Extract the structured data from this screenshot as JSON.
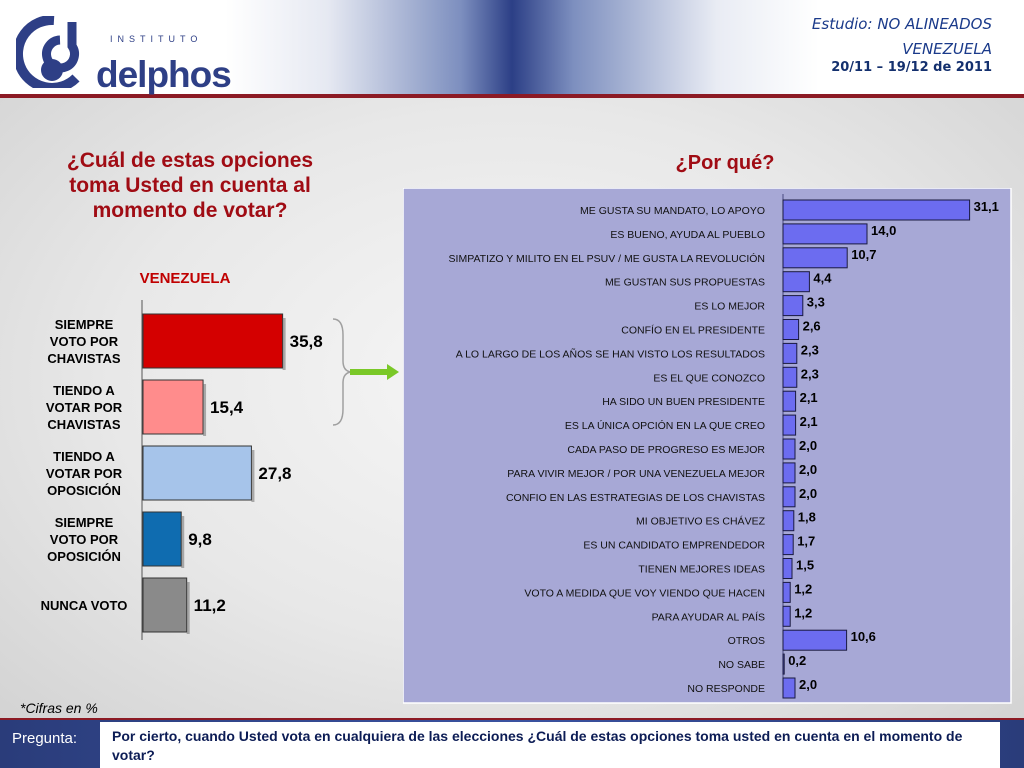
{
  "header": {
    "logo_small": "INSTITUTO",
    "logo_word": "delphos",
    "study_prefix": "Estudio:",
    "study_name": "NO ALINEADOS",
    "country": "VENEZUELA",
    "dates": "20/11 – 19/12 de 2011"
  },
  "left_question": "¿Cuál de estas opciones toma Usted en cuenta al momento de votar?",
  "right_question": "¿Por qué?",
  "note": "*Cifras en %",
  "footer": {
    "label": "Pregunta:",
    "question": "Por cierto, cuando Usted vota en cualquiera de las elecciones ¿Cuál de estas opciones toma usted en cuenta en el momento de votar?"
  },
  "chart_data": [
    {
      "type": "bar",
      "orientation": "horizontal",
      "title": "VENEZUELA",
      "categories": [
        "SIEMPRE VOTO POR CHAVISTAS",
        "TIENDO A VOTAR POR CHAVISTAS",
        "TIENDO A VOTAR POR OPOSICIÓN",
        "SIEMPRE VOTO POR OPOSICIÓN",
        "NUNCA VOTO"
      ],
      "values": [
        35.8,
        15.4,
        27.8,
        9.8,
        11.2
      ],
      "value_labels": [
        "35,8",
        "15,4",
        "27,8",
        "9,8",
        "11,2"
      ],
      "colors": [
        "#d40000",
        "#ff8c8c",
        "#a6c4ea",
        "#0f6cb0",
        "#8a8a8a"
      ]
    },
    {
      "type": "bar",
      "orientation": "horizontal",
      "title": "¿Por qué?",
      "categories": [
        "ME GUSTA SU MANDATO, LO APOYO",
        "ES BUENO, AYUDA AL PUEBLO",
        "SIMPATIZO Y MILITO EN EL PSUV / ME GUSTA LA REVOLUCIÓN",
        "ME GUSTAN SUS PROPUESTAS",
        "ES LO MEJOR",
        "CONFÍO EN EL PRESIDENTE",
        "A LO LARGO DE LOS AÑOS SE HAN VISTO LOS RESULTADOS",
        "ES EL QUE CONOZCO",
        "HA SIDO UN BUEN PRESIDENTE",
        "ES LA ÚNICA OPCIÓN EN LA QUE CREO",
        "CADA PASO DE PROGRESO ES MEJOR",
        "PARA VIVIR MEJOR / POR UNA VENEZUELA MEJOR",
        "CONFIO EN LAS ESTRATEGIAS DE LOS CHAVISTAS",
        "MI OBJETIVO ES CHÁVEZ",
        "ES UN CANDIDATO EMPRENDEDOR",
        "TIENEN MEJORES IDEAS",
        "VOTO A MEDIDA QUE VOY VIENDO QUE HACEN",
        "PARA AYUDAR AL PAÍS",
        "OTROS",
        "NO SABE",
        "NO RESPONDE"
      ],
      "values": [
        31.1,
        14.0,
        10.7,
        4.4,
        3.3,
        2.6,
        2.3,
        2.3,
        2.1,
        2.1,
        2.0,
        2.0,
        2.0,
        1.8,
        1.7,
        1.5,
        1.2,
        1.2,
        10.6,
        0.2,
        2.0
      ],
      "value_labels": [
        "31,1",
        "14,0",
        "10,7",
        "4,4",
        "3,3",
        "2,6",
        "2,3",
        "2,3",
        "2,1",
        "2,1",
        "2,0",
        "2,0",
        "2,0",
        "1,8",
        "1,7",
        "1,5",
        "1,2",
        "1,2",
        "10,6",
        "0,2",
        "2,0"
      ],
      "color": "#6c6cf0",
      "panel_color": "#a7a8d6"
    }
  ]
}
